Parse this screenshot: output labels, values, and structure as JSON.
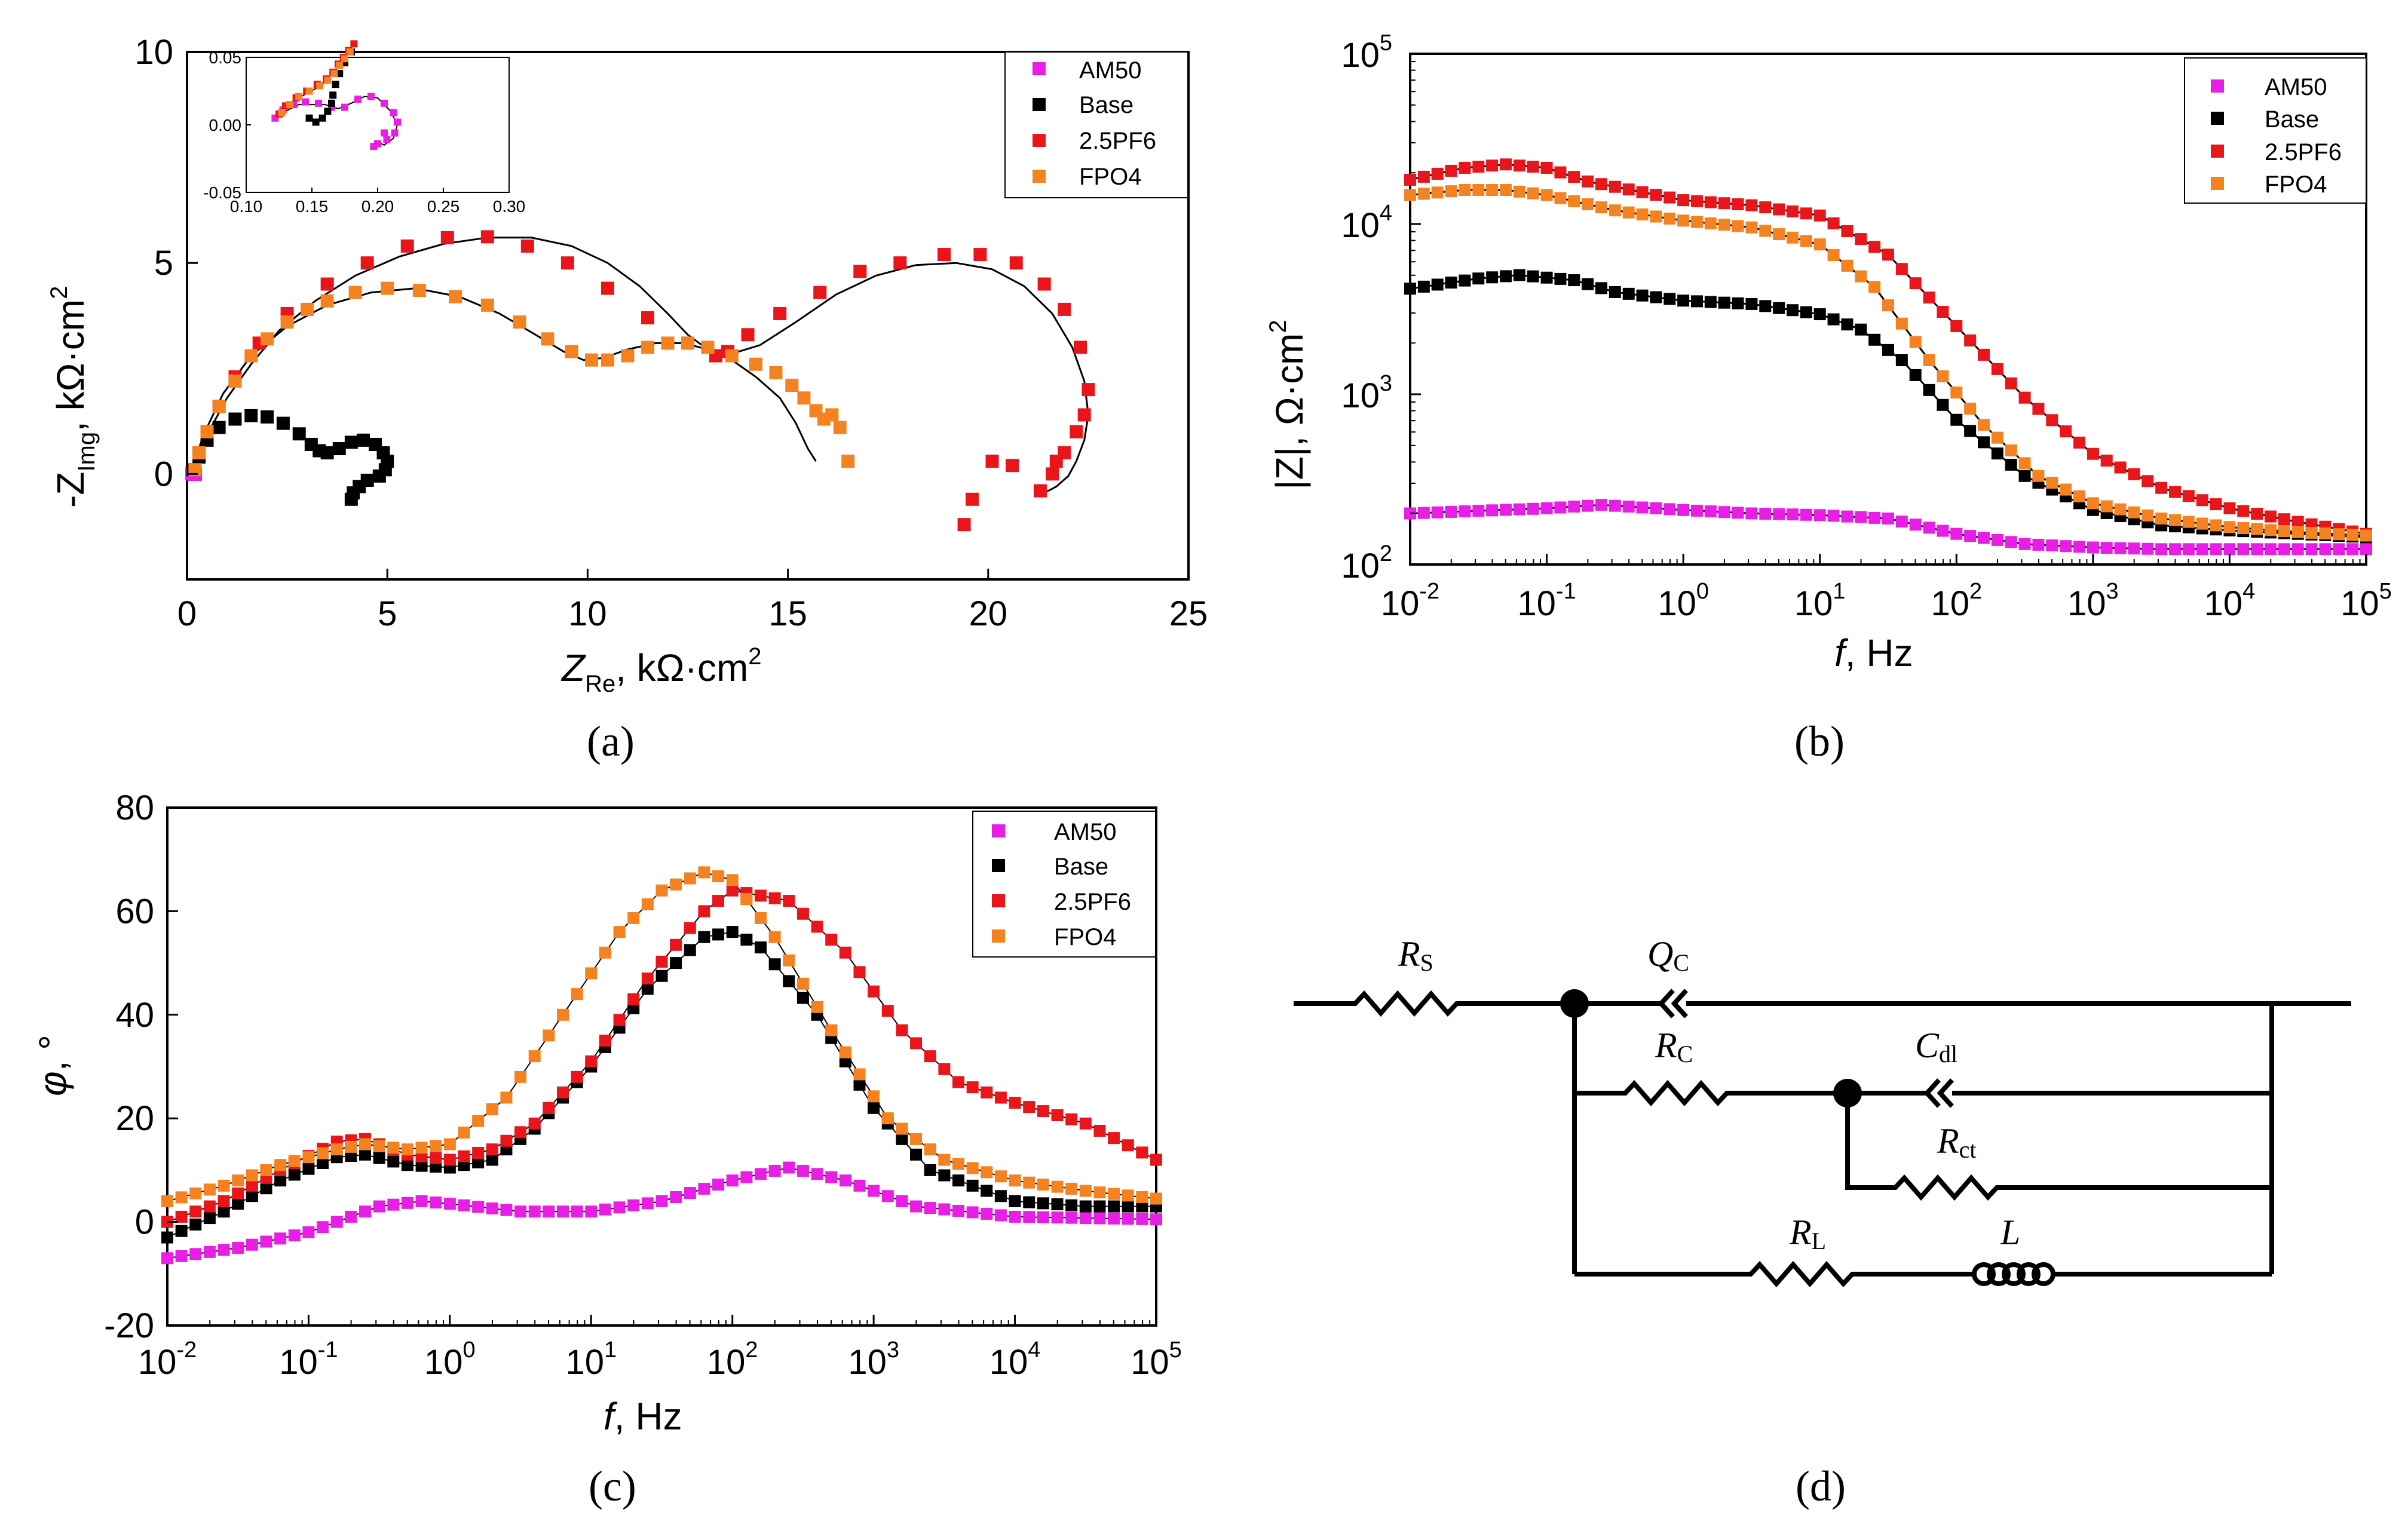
{
  "colors": {
    "AM50": "#e91ee6",
    "Base": "#000000",
    "2.5PF6": "#e8151b",
    "FPO4": "#f58220",
    "fit": "#000000"
  },
  "captions": {
    "a": "(a)",
    "b": "(b)",
    "c": "(c)",
    "d": "(d)"
  },
  "legend_labels": [
    "AM50",
    "Base",
    "2.5PF6",
    "FPO4"
  ],
  "chart_data": [
    {
      "id": "a",
      "type": "scatter",
      "title": "",
      "xlabel_main": "Z",
      "xlabel_sub": "Re",
      "xlabel_unit": ", kΩ·cm",
      "xlabel_sup": "2",
      "ylabel_main": "-Z",
      "ylabel_sub": "Img",
      "ylabel_unit": ", kΩ·cm",
      "ylabel_sup": "2",
      "xlim": [
        0,
        25
      ],
      "ylim": [
        -2.5,
        10
      ],
      "xticks": [
        "0",
        "5",
        "10",
        "15",
        "20",
        "25"
      ],
      "yticks": [
        "0",
        "5",
        "10"
      ],
      "legend": "top-right",
      "series": [
        {
          "name": "AM50",
          "x": [
            0.12,
            0.15,
            0.18,
            0.2,
            0.21,
            0.2,
            0.17,
            0.15
          ],
          "y": [
            0.01,
            0.03,
            0.02,
            0.01,
            0.0,
            -0.01,
            -0.01,
            0.0
          ]
        },
        {
          "name": "Base",
          "x": [
            0.15,
            0.3,
            0.5,
            0.8,
            1.2,
            1.6,
            2.0,
            2.4,
            2.8,
            3.1,
            3.3,
            3.5,
            3.8,
            4.1,
            4.4,
            4.7,
            4.9,
            5.0,
            4.95,
            4.8,
            4.5,
            4.3,
            4.15,
            4.1
          ],
          "y": [
            0.1,
            0.4,
            0.8,
            1.1,
            1.3,
            1.38,
            1.35,
            1.2,
            0.95,
            0.7,
            0.55,
            0.5,
            0.6,
            0.75,
            0.8,
            0.7,
            0.5,
            0.3,
            0.1,
            -0.05,
            -0.15,
            -0.3,
            -0.45,
            -0.6
          ]
        },
        {
          "name": "2.5PF6",
          "x": [
            0.2,
            0.3,
            0.5,
            0.8,
            1.2,
            1.8,
            2.5,
            3.5,
            4.5,
            5.5,
            6.5,
            7.5,
            8.5,
            9.5,
            10.5,
            11.5,
            12.5,
            13.2,
            13.5,
            14.0,
            14.8,
            15.8,
            16.8,
            17.8,
            18.9,
            19.8,
            20.7,
            21.4,
            21.9,
            22.3,
            22.5,
            22.4,
            22.2,
            21.9,
            21.6,
            21.3,
            21.7,
            20.6,
            20.1,
            19.6,
            19.4
          ],
          "y": [
            0.1,
            0.5,
            1.0,
            1.6,
            2.3,
            3.1,
            3.8,
            4.5,
            5.0,
            5.4,
            5.6,
            5.62,
            5.4,
            5.0,
            4.4,
            3.7,
            3.1,
            2.8,
            2.9,
            3.3,
            3.8,
            4.3,
            4.8,
            5.0,
            5.2,
            5.2,
            5.0,
            4.5,
            3.9,
            3.0,
            2.0,
            1.4,
            1.0,
            0.5,
            0.0,
            -0.4,
            0.3,
            0.2,
            0.3,
            -0.6,
            -1.2
          ]
        },
        {
          "name": "FPO4",
          "x": [
            0.2,
            0.3,
            0.5,
            0.8,
            1.2,
            1.6,
            2.0,
            2.5,
            3.0,
            3.5,
            4.2,
            5.0,
            5.8,
            6.7,
            7.5,
            8.3,
            9.0,
            9.6,
            10.1,
            10.5,
            11.0,
            11.5,
            12.0,
            12.5,
            13.0,
            13.6,
            14.2,
            14.7,
            15.1,
            15.4,
            15.7,
            15.9,
            16.1,
            16.3,
            16.5
          ],
          "y": [
            0.1,
            0.5,
            1.0,
            1.6,
            2.2,
            2.8,
            3.2,
            3.6,
            3.9,
            4.1,
            4.3,
            4.4,
            4.35,
            4.2,
            4.0,
            3.6,
            3.2,
            2.9,
            2.7,
            2.7,
            2.8,
            3.0,
            3.1,
            3.1,
            3.0,
            2.8,
            2.6,
            2.4,
            2.1,
            1.8,
            1.5,
            1.3,
            1.4,
            1.1,
            0.3
          ]
        }
      ],
      "fits": [
        {
          "x": [
            0.1,
            0.3,
            0.6,
            1.0,
            1.6,
            2.3,
            3.2,
            4.2,
            5.3,
            6.4,
            7.5,
            8.6,
            9.6,
            10.5,
            11.3,
            12.0,
            12.5,
            13.0,
            13.6,
            14.3,
            15.2,
            16.2,
            17.2,
            18.2,
            19.2,
            20.1,
            20.9,
            21.6,
            22.1,
            22.4,
            22.5,
            22.4,
            22.2,
            22.0,
            21.7,
            21.4
          ],
          "y": [
            0.0,
            0.5,
            1.1,
            1.8,
            2.6,
            3.4,
            4.1,
            4.7,
            5.15,
            5.45,
            5.6,
            5.6,
            5.4,
            5.0,
            4.45,
            3.8,
            3.3,
            2.95,
            2.85,
            3.05,
            3.6,
            4.25,
            4.7,
            4.95,
            5.0,
            4.85,
            4.45,
            3.8,
            3.0,
            2.2,
            1.4,
            0.8,
            0.3,
            -0.05,
            -0.3,
            -0.45
          ]
        },
        {
          "x": [
            0.1,
            0.4,
            0.9,
            1.6,
            2.5,
            3.5,
            4.6,
            5.7,
            6.8,
            7.8,
            8.7,
            9.4,
            9.9,
            10.4,
            11.0,
            11.7,
            12.4,
            13.0,
            13.6,
            14.2,
            14.8,
            15.2,
            15.5,
            15.7
          ],
          "y": [
            0.0,
            0.9,
            1.9,
            2.8,
            3.5,
            4.0,
            4.3,
            4.4,
            4.2,
            3.8,
            3.3,
            2.9,
            2.7,
            2.75,
            2.95,
            3.1,
            3.1,
            2.95,
            2.7,
            2.3,
            1.8,
            1.2,
            0.6,
            0.3
          ]
        }
      ],
      "inset": {
        "xlim": [
          0.1,
          0.3
        ],
        "ylim": [
          -0.05,
          0.05
        ],
        "xticks": [
          "0.10",
          "0.15",
          "0.20",
          "0.25",
          "0.30"
        ],
        "yticks": [
          "-0.05",
          "0.00",
          "0.05"
        ],
        "series": [
          {
            "name": "AM50",
            "x": [
              0.122,
              0.128,
              0.136,
              0.145,
              0.155,
              0.165,
              0.175,
              0.185,
              0.195,
              0.205,
              0.212,
              0.215,
              0.213,
              0.207,
              0.2,
              0.197,
              0.205
            ],
            "y": [
              0.005,
              0.011,
              0.015,
              0.017,
              0.016,
              0.013,
              0.013,
              0.019,
              0.021,
              0.016,
              0.009,
              0.002,
              -0.006,
              -0.011,
              -0.014,
              -0.016,
              -0.006
            ]
          },
          {
            "name": "Base",
            "x": [
              0.148,
              0.153,
              0.158,
              0.162,
              0.165,
              0.166,
              0.168,
              0.171,
              0.175,
              0.18
            ],
            "y": [
              0.005,
              0.002,
              0.005,
              0.01,
              0.016,
              0.022,
              0.03,
              0.038,
              0.046,
              0.054
            ]
          },
          {
            "name": "2.5PF6",
            "x": [
              0.125,
              0.13,
              0.138,
              0.146,
              0.154,
              0.161,
              0.166,
              0.17,
              0.174,
              0.178,
              0.182
            ],
            "y": [
              0.008,
              0.014,
              0.02,
              0.025,
              0.03,
              0.034,
              0.039,
              0.045,
              0.05,
              0.055,
              0.06
            ]
          },
          {
            "name": "FPO4",
            "x": [
              0.127,
              0.133,
              0.14,
              0.148,
              0.156,
              0.162,
              0.167,
              0.171,
              0.175,
              0.179
            ],
            "y": [
              0.009,
              0.015,
              0.021,
              0.025,
              0.029,
              0.033,
              0.038,
              0.044,
              0.049,
              0.054
            ]
          }
        ],
        "fits": [
          {
            "x": [
              0.12,
              0.14,
              0.16,
              0.17,
              0.18,
              0.19,
              0.2,
              0.21,
              0.215,
              0.212,
              0.205,
              0.198
            ],
            "y": [
              0.005,
              0.015,
              0.015,
              0.012,
              0.016,
              0.021,
              0.02,
              0.01,
              0.0,
              -0.01,
              -0.015,
              -0.012
            ]
          },
          {
            "x": [
              0.125,
              0.14,
              0.155,
              0.165,
              0.172,
              0.18
            ],
            "y": [
              0.01,
              0.02,
              0.028,
              0.036,
              0.046,
              0.058
            ]
          }
        ]
      }
    },
    {
      "id": "b",
      "type": "scatter",
      "title": "",
      "xscale": "log",
      "yscale": "log",
      "xlabel_italic": "f",
      "xlabel_rest": ", Hz",
      "ylabel_text": "|Z|, Ω·cm",
      "ylabel_sup": "2",
      "xlim_log10": [
        -2,
        5
      ],
      "ylim_log10": [
        2,
        5
      ],
      "xtick_exps": [
        "-2",
        "-1",
        "0",
        "1",
        "2",
        "3",
        "4",
        "5"
      ],
      "ytick_exps": [
        "2",
        "3",
        "4",
        "5"
      ],
      "tick_base": "10",
      "legend": "top-right",
      "points_per_series": 71,
      "series": [
        {
          "name": "AM50",
          "log10f": [
            -2,
            -1,
            -0.6,
            0,
            0.5,
            1,
            1.5,
            2,
            2.5,
            3,
            3.5,
            4,
            5
          ],
          "log10Z": [
            2.3,
            2.33,
            2.35,
            2.32,
            2.3,
            2.29,
            2.27,
            2.18,
            2.12,
            2.1,
            2.09,
            2.09,
            2.09
          ]
        },
        {
          "name": "Base",
          "log10f": [
            -2,
            -1.5,
            -1.2,
            -0.8,
            -0.5,
            0,
            0.5,
            1,
            1.3,
            1.6,
            2,
            2.5,
            3,
            3.5,
            4,
            4.5,
            5
          ],
          "log10Z": [
            3.62,
            3.68,
            3.7,
            3.67,
            3.6,
            3.55,
            3.53,
            3.47,
            3.38,
            3.2,
            2.85,
            2.52,
            2.32,
            2.23,
            2.2,
            2.18,
            2.16
          ]
        },
        {
          "name": "2.5PF6",
          "log10f": [
            -2,
            -1.6,
            -1.3,
            -1,
            -0.7,
            0,
            0.5,
            1,
            1.5,
            2,
            2.5,
            3,
            3.5,
            4,
            4.5,
            5
          ],
          "log10Z": [
            4.26,
            4.33,
            4.35,
            4.33,
            4.25,
            4.14,
            4.11,
            4.05,
            3.82,
            3.4,
            2.98,
            2.65,
            2.45,
            2.33,
            2.25,
            2.18
          ]
        },
        {
          "name": "FPO4",
          "log10f": [
            -2,
            -1.6,
            -1.3,
            -1,
            -0.5,
            0,
            0.5,
            1,
            1.4,
            1.8,
            2.2,
            2.6,
            3,
            3.5,
            4,
            4.5,
            5
          ],
          "log10Z": [
            4.17,
            4.2,
            4.2,
            4.17,
            4.08,
            4.02,
            3.98,
            3.88,
            3.63,
            3.2,
            2.82,
            2.52,
            2.36,
            2.27,
            2.22,
            2.19,
            2.17
          ]
        }
      ]
    },
    {
      "id": "c",
      "type": "scatter",
      "title": "",
      "xscale": "log",
      "xlabel_italic": "f",
      "xlabel_rest": ", Hz",
      "ylabel_italic": "φ",
      "ylabel_rest": ", °",
      "xlim_log10": [
        -2,
        5
      ],
      "ylim": [
        -20,
        80
      ],
      "xtick_exps": [
        "-2",
        "-1",
        "0",
        "1",
        "2",
        "3",
        "4",
        "5"
      ],
      "tick_base": "10",
      "yticks": [
        "-20",
        "0",
        "20",
        "40",
        "60",
        "80"
      ],
      "legend": "top-right",
      "points_per_series": 71,
      "series": [
        {
          "name": "AM50",
          "log10f": [
            -2,
            -1.5,
            -1,
            -0.5,
            -0.2,
            0,
            0.5,
            1,
            1.5,
            2,
            2.4,
            2.8,
            3.3,
            4,
            5
          ],
          "phi": [
            -7,
            -5,
            -2,
            3,
            4,
            3.5,
            2,
            2,
            4,
            8,
            10.5,
            8,
            3,
            1,
            0.5
          ]
        },
        {
          "name": "Base",
          "log10f": [
            -2,
            -1.6,
            -1.2,
            -0.8,
            -0.6,
            -0.3,
            0,
            0.3,
            0.6,
            1,
            1.4,
            1.8,
            2,
            2.2,
            2.6,
            3,
            3.4,
            4,
            4.5,
            5
          ],
          "phi": [
            -3,
            2,
            8,
            12.5,
            13,
            11,
            10.5,
            12,
            18,
            30,
            45,
            55,
            56,
            53,
            40,
            22,
            10,
            4,
            3,
            3
          ]
        },
        {
          "name": "2.5PF6",
          "log10f": [
            -2,
            -1.6,
            -1.2,
            -0.8,
            -0.6,
            -0.3,
            0,
            0.3,
            0.6,
            1,
            1.4,
            1.8,
            2,
            2.4,
            2.8,
            3.2,
            3.6,
            4,
            4.5,
            5
          ],
          "phi": [
            0,
            4,
            10,
            15.5,
            16,
            13,
            12,
            14,
            19,
            31,
            47,
            60,
            64,
            62,
            52,
            37,
            27,
            23,
            19,
            12
          ]
        },
        {
          "name": "FPO4",
          "log10f": [
            -2,
            -1.6,
            -1.2,
            -0.8,
            -0.6,
            -0.3,
            0,
            0.4,
            0.8,
            1.2,
            1.5,
            1.8,
            2,
            2.3,
            2.7,
            3.1,
            3.5,
            4,
            4.5,
            5
          ],
          "phi": [
            4,
            7,
            11,
            14,
            15,
            14,
            15,
            24,
            40,
            56,
            64,
            67.5,
            66,
            55,
            37,
            20,
            12,
            8,
            6,
            4.5
          ]
        }
      ]
    }
  ],
  "circuit": {
    "labels": [
      {
        "main": "R",
        "sub": "S"
      },
      {
        "main": "Q",
        "sub": "C"
      },
      {
        "main": "R",
        "sub": "C"
      },
      {
        "main": "C",
        "sub": "dl"
      },
      {
        "main": "R",
        "sub": "ct"
      },
      {
        "main": "R",
        "sub": "L"
      },
      {
        "main": "L",
        "sub": ""
      }
    ]
  }
}
